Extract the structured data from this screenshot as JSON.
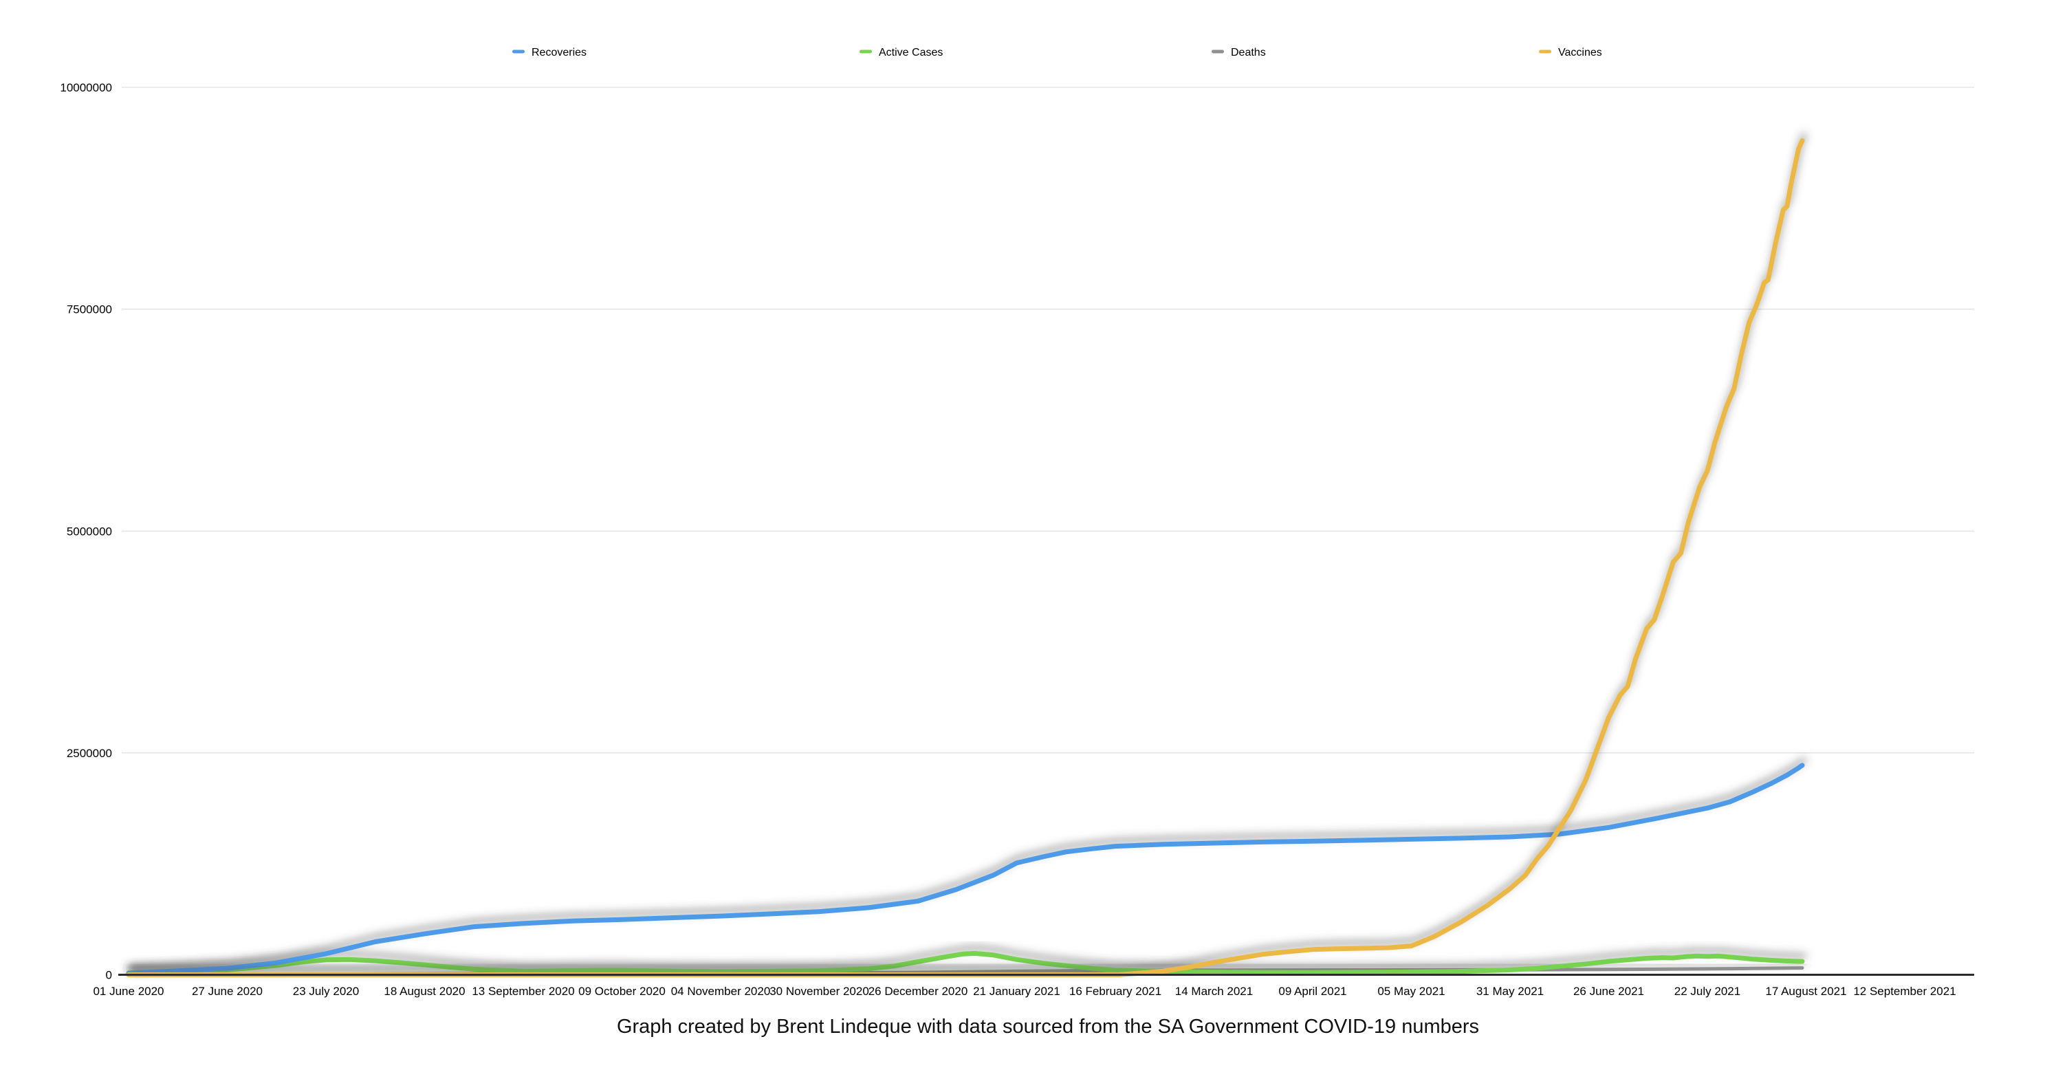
{
  "caption": "Graph created by Brent Lindeque with data sourced from the SA Government COVID-19 numbers",
  "colors": {
    "recoveries": "#4E9AE8",
    "active_cases": "#77D34F",
    "deaths": "#8F8F8F",
    "vaccines": "#EBB844",
    "gridline": "#D8D8D8",
    "axis_line": "#2B2B2B"
  },
  "chart_data": {
    "type": "line",
    "title": "",
    "xlabel": "",
    "ylabel": "",
    "grid": true,
    "legend_position": "top",
    "y_axis": {
      "min": 0,
      "max": 10000000,
      "ticks": [
        0,
        2500000,
        5000000,
        7500000,
        10000000
      ],
      "tick_labels": [
        "0",
        "2500000",
        "5000000",
        "7500000",
        "10000000"
      ]
    },
    "x_axis": {
      "unit": "days since 01 June 2020",
      "range_days": [
        0,
        486
      ],
      "tick_days": [
        0,
        26,
        52,
        78,
        104,
        130,
        156,
        182,
        208,
        234,
        260,
        286,
        312,
        338,
        364,
        390,
        416,
        442,
        468
      ],
      "tick_labels": [
        "01 June 2020",
        "27 June 2020",
        "23 July 2020",
        "18 August 2020",
        "13 September 2020",
        "09 October 2020",
        "04 November 2020",
        "30 November 2020",
        "26 December 2020",
        "21 January 2021",
        "16 February 2021",
        "14 March 2021",
        "09 April 2021",
        "05 May 2021",
        "31 May 2021",
        "26 June 2021",
        "22 July 2021",
        "17 August 2021",
        "12 September 2021"
      ]
    },
    "series": [
      {
        "name": "Recoveries",
        "color": "#4E9AE8",
        "stroke_width": 7,
        "points": [
          [
            0,
            19000
          ],
          [
            13,
            45000
          ],
          [
            26,
            73000
          ],
          [
            39,
            135000
          ],
          [
            52,
            237000
          ],
          [
            65,
            372000
          ],
          [
            78,
            462000
          ],
          [
            91,
            542000
          ],
          [
            104,
            578000
          ],
          [
            117,
            606000
          ],
          [
            130,
            622000
          ],
          [
            143,
            642000
          ],
          [
            156,
            662000
          ],
          [
            169,
            686000
          ],
          [
            182,
            712000
          ],
          [
            195,
            756000
          ],
          [
            208,
            830000
          ],
          [
            218,
            960000
          ],
          [
            228,
            1125000
          ],
          [
            234,
            1260000
          ],
          [
            241,
            1330000
          ],
          [
            247,
            1385000
          ],
          [
            254,
            1420000
          ],
          [
            260,
            1448000
          ],
          [
            273,
            1470000
          ],
          [
            286,
            1484000
          ],
          [
            299,
            1496000
          ],
          [
            312,
            1506000
          ],
          [
            325,
            1516000
          ],
          [
            338,
            1527000
          ],
          [
            351,
            1539000
          ],
          [
            364,
            1554000
          ],
          [
            377,
            1585000
          ],
          [
            390,
            1660000
          ],
          [
            403,
            1765000
          ],
          [
            416,
            1878000
          ],
          [
            422,
            1950000
          ],
          [
            428,
            2060000
          ],
          [
            433,
            2160000
          ],
          [
            437,
            2250000
          ],
          [
            440,
            2330000
          ],
          [
            441,
            2360000
          ]
        ]
      },
      {
        "name": "Active Cases",
        "color": "#77D34F",
        "stroke_width": 7,
        "points": [
          [
            0,
            14000
          ],
          [
            13,
            30000
          ],
          [
            26,
            55000
          ],
          [
            39,
            105000
          ],
          [
            46,
            145000
          ],
          [
            52,
            168000
          ],
          [
            58,
            173000
          ],
          [
            65,
            158000
          ],
          [
            72,
            135000
          ],
          [
            78,
            112000
          ],
          [
            85,
            85000
          ],
          [
            91,
            64000
          ],
          [
            98,
            50000
          ],
          [
            104,
            40000
          ],
          [
            110,
            43000
          ],
          [
            117,
            47000
          ],
          [
            124,
            50000
          ],
          [
            130,
            50000
          ],
          [
            136,
            46000
          ],
          [
            143,
            42000
          ],
          [
            156,
            37000
          ],
          [
            169,
            40000
          ],
          [
            182,
            46000
          ],
          [
            195,
            68000
          ],
          [
            202,
            100000
          ],
          [
            208,
            147000
          ],
          [
            215,
            200000
          ],
          [
            220,
            235000
          ],
          [
            223,
            241000
          ],
          [
            228,
            222000
          ],
          [
            234,
            172000
          ],
          [
            241,
            130000
          ],
          [
            247,
            103000
          ],
          [
            254,
            72000
          ],
          [
            260,
            52000
          ],
          [
            273,
            38000
          ],
          [
            286,
            30000
          ],
          [
            299,
            26000
          ],
          [
            312,
            25000
          ],
          [
            325,
            28000
          ],
          [
            338,
            32000
          ],
          [
            351,
            38000
          ],
          [
            364,
            55000
          ],
          [
            371,
            72000
          ],
          [
            377,
            95000
          ],
          [
            384,
            122000
          ],
          [
            390,
            151000
          ],
          [
            397,
            175000
          ],
          [
            400,
            186000
          ],
          [
            404,
            193000
          ],
          [
            407,
            190000
          ],
          [
            410,
            203000
          ],
          [
            413,
            211000
          ],
          [
            416,
            207000
          ],
          [
            419,
            211000
          ],
          [
            423,
            196000
          ],
          [
            426,
            185000
          ],
          [
            428,
            176000
          ],
          [
            431,
            168000
          ],
          [
            433,
            163000
          ],
          [
            435,
            159000
          ],
          [
            437,
            155000
          ],
          [
            439,
            152000
          ],
          [
            441,
            150000
          ]
        ]
      },
      {
        "name": "Deaths",
        "color": "#8F8F8F",
        "stroke_width": 5,
        "points": [
          [
            0,
            700
          ],
          [
            26,
            2500
          ],
          [
            52,
            6000
          ],
          [
            78,
            12000
          ],
          [
            104,
            15400
          ],
          [
            130,
            18000
          ],
          [
            156,
            19700
          ],
          [
            182,
            21500
          ],
          [
            208,
            26700
          ],
          [
            221,
            33000
          ],
          [
            234,
            39500
          ],
          [
            247,
            44500
          ],
          [
            260,
            48000
          ],
          [
            286,
            51200
          ],
          [
            312,
            53300
          ],
          [
            338,
            54600
          ],
          [
            364,
            56400
          ],
          [
            377,
            57900
          ],
          [
            390,
            59800
          ],
          [
            403,
            63000
          ],
          [
            416,
            67000
          ],
          [
            423,
            69300
          ],
          [
            429,
            71700
          ],
          [
            434,
            73700
          ],
          [
            438,
            75500
          ],
          [
            441,
            76800
          ]
        ]
      },
      {
        "name": "Vaccines",
        "color": "#EBB844",
        "stroke_width": 7,
        "points": [
          [
            0,
            0
          ],
          [
            50,
            0
          ],
          [
            100,
            0
          ],
          [
            150,
            0
          ],
          [
            200,
            0
          ],
          [
            230,
            0
          ],
          [
            255,
            0
          ],
          [
            261,
            0
          ],
          [
            266,
            16000
          ],
          [
            273,
            42000
          ],
          [
            280,
            90000
          ],
          [
            286,
            140000
          ],
          [
            293,
            190000
          ],
          [
            299,
            232000
          ],
          [
            306,
            262000
          ],
          [
            312,
            284000
          ],
          [
            318,
            292000
          ],
          [
            325,
            298000
          ],
          [
            332,
            305000
          ],
          [
            338,
            325000
          ],
          [
            344,
            430000
          ],
          [
            351,
            592000
          ],
          [
            358,
            780000
          ],
          [
            364,
            970000
          ],
          [
            368,
            1120000
          ],
          [
            371,
            1300000
          ],
          [
            374,
            1450000
          ],
          [
            377,
            1650000
          ],
          [
            380,
            1850000
          ],
          [
            384,
            2200000
          ],
          [
            387,
            2550000
          ],
          [
            390,
            2900000
          ],
          [
            393,
            3150000
          ],
          [
            395,
            3250000
          ],
          [
            397,
            3550000
          ],
          [
            400,
            3900000
          ],
          [
            402,
            4000000
          ],
          [
            404,
            4250000
          ],
          [
            407,
            4650000
          ],
          [
            409,
            4750000
          ],
          [
            411,
            5100000
          ],
          [
            414,
            5500000
          ],
          [
            416,
            5680000
          ],
          [
            418,
            6000000
          ],
          [
            421,
            6400000
          ],
          [
            423,
            6600000
          ],
          [
            425,
            7000000
          ],
          [
            427,
            7350000
          ],
          [
            429,
            7550000
          ],
          [
            431,
            7800000
          ],
          [
            432,
            7830000
          ],
          [
            434,
            8250000
          ],
          [
            436,
            8620000
          ],
          [
            437,
            8660000
          ],
          [
            438,
            8900000
          ],
          [
            440,
            9300000
          ],
          [
            441,
            9400000
          ]
        ]
      }
    ]
  }
}
